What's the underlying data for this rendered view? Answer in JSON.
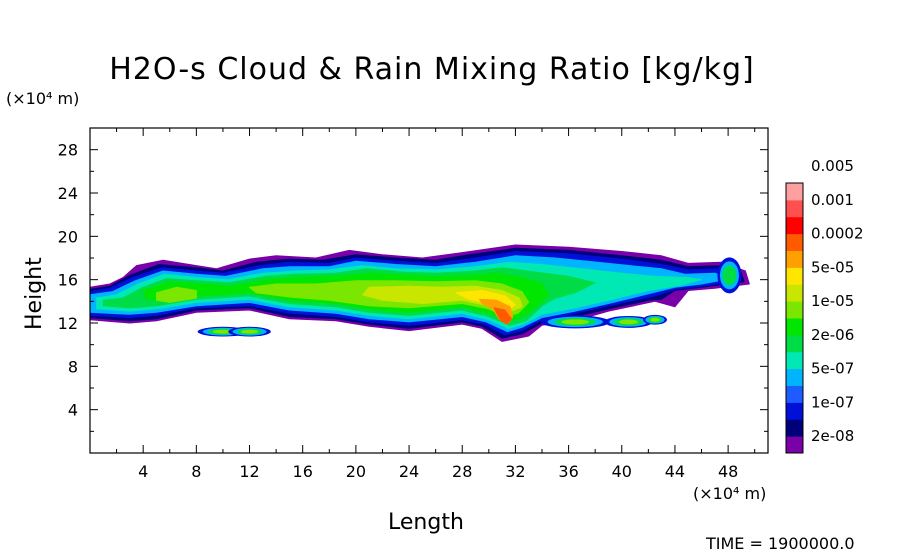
{
  "chart_data": {
    "type": "heatmap",
    "title": "H2O-s Cloud & Rain Mixing Ratio [kg/kg]",
    "xlabel": "Length",
    "ylabel": "Height",
    "x_unit": "(×10⁴ m)",
    "y_unit": "(×10⁴ m)",
    "xlim": [
      0,
      51
    ],
    "ylim": [
      0,
      30
    ],
    "x_ticks": [
      "4",
      "8",
      "12",
      "16",
      "20",
      "24",
      "28",
      "32",
      "36",
      "40",
      "44",
      "48"
    ],
    "y_ticks": [
      "4",
      "8",
      "12",
      "16",
      "20",
      "24",
      "28"
    ],
    "colorbar": {
      "levels": [
        "2e-08",
        "1e-07",
        "5e-07",
        "2e-06",
        "1e-05",
        "5e-05",
        "0.0002",
        "0.001",
        "0.005"
      ],
      "colors": [
        "#7a00a8",
        "#00007a",
        "#0010d8",
        "#1e5cff",
        "#00b4ff",
        "#00e8b4",
        "#00dc46",
        "#00e600",
        "#7be600",
        "#c8e600",
        "#ffe600",
        "#ffa000",
        "#ff5a00",
        "#ff0000",
        "#ff5050",
        "#ffa0a0"
      ]
    },
    "time_label": "TIME = 1900000.0"
  }
}
